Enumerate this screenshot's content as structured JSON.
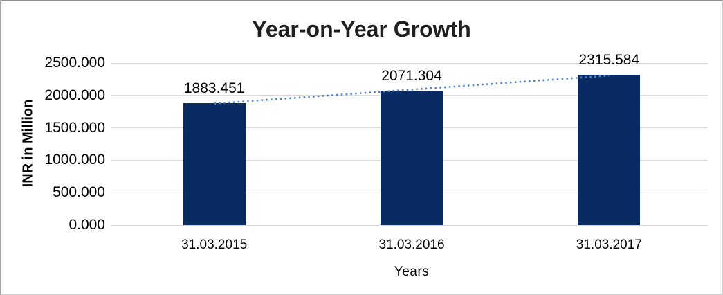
{
  "window": {
    "background": "#ffffff",
    "border_color": "#a6a6a6"
  },
  "chart_data": {
    "type": "bar",
    "title": "Year-on-Year Growth",
    "categories": [
      "31.03.2015",
      "31.03.2016",
      "31.03.2017"
    ],
    "values": [
      1883.451,
      2071.304,
      2315.584
    ],
    "data_labels": [
      "1883.451",
      "2071.304",
      "2315.584"
    ],
    "xlabel": "Years",
    "ylabel": "INR in Million",
    "ylim": [
      0,
      2500
    ],
    "ytick_step": 500,
    "ytick_labels": [
      "0.000",
      "500.000",
      "1000.000",
      "1500.000",
      "2000.000",
      "2500.000"
    ],
    "grid": true,
    "legend": "none",
    "bar_color": "#0a2a64",
    "gridline_color": "#d9d9d9",
    "trendline": {
      "type": "linear",
      "style": "dotted",
      "color": "#4e86c4"
    }
  }
}
